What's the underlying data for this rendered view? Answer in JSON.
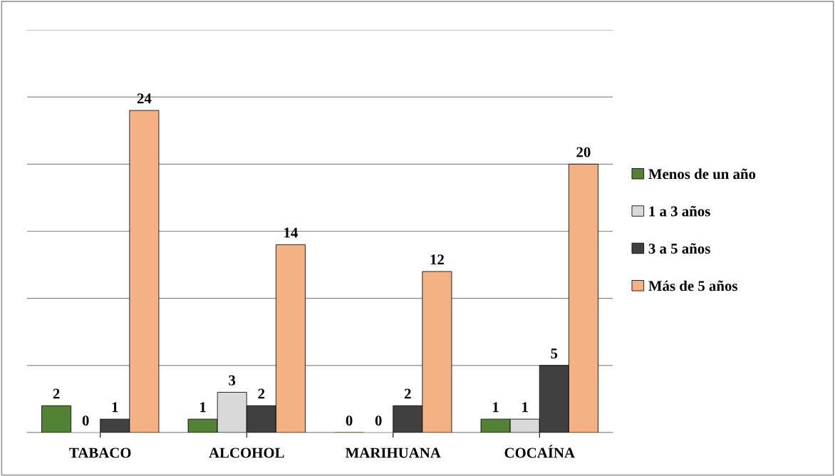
{
  "chart_data": {
    "type": "bar",
    "categories": [
      "TABACO",
      "ALCOHOL",
      "MARIHUANA",
      "COCAÍNA"
    ],
    "series": [
      {
        "name": "Menos de un año",
        "color": "#548235",
        "values": [
          2,
          1,
          0,
          1
        ]
      },
      {
        "name": "1 a 3 años",
        "color": "#d9d9d9",
        "values": [
          0,
          3,
          0,
          1
        ]
      },
      {
        "name": "3 a 5 años",
        "color": "#404040",
        "values": [
          1,
          2,
          2,
          5
        ]
      },
      {
        "name": "Más de 5 años",
        "color": "#f4b183",
        "values": [
          24,
          14,
          12,
          20
        ]
      }
    ],
    "ylim": [
      0,
      30
    ],
    "yticks": [
      {
        "value": 0,
        "label": null
      },
      {
        "value": 5,
        "label": null
      },
      {
        "value": 10,
        "label": null
      },
      {
        "value": 15,
        "label": null
      },
      {
        "value": 20,
        "label": null
      },
      {
        "value": 25,
        "label": null
      },
      {
        "value": 30,
        "label": null
      }
    ],
    "grid": "y",
    "legend": "right",
    "data_labels": true,
    "tick_labels": "x"
  }
}
